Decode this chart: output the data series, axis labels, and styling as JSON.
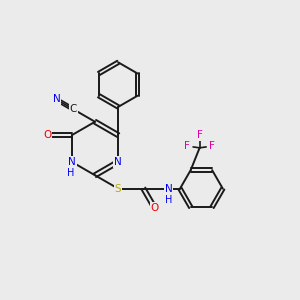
{
  "background_color": "#ebebeb",
  "bond_color": "#1a1a1a",
  "atom_colors": {
    "N": "#0000ee",
    "O": "#ee0000",
    "S": "#bbaa00",
    "F": "#dd00aa",
    "C": "#1a1a1a"
  },
  "figsize": [
    3.0,
    3.0
  ],
  "dpi": 100
}
